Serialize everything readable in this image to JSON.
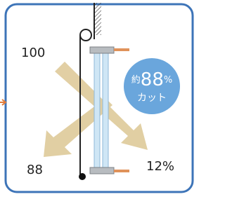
{
  "labels": {
    "incoming": "100",
    "reflected": "88",
    "transmitted": "12%"
  },
  "badge": {
    "prefix": "約",
    "number": "88",
    "suffix": "%",
    "caption": "カット"
  }
}
